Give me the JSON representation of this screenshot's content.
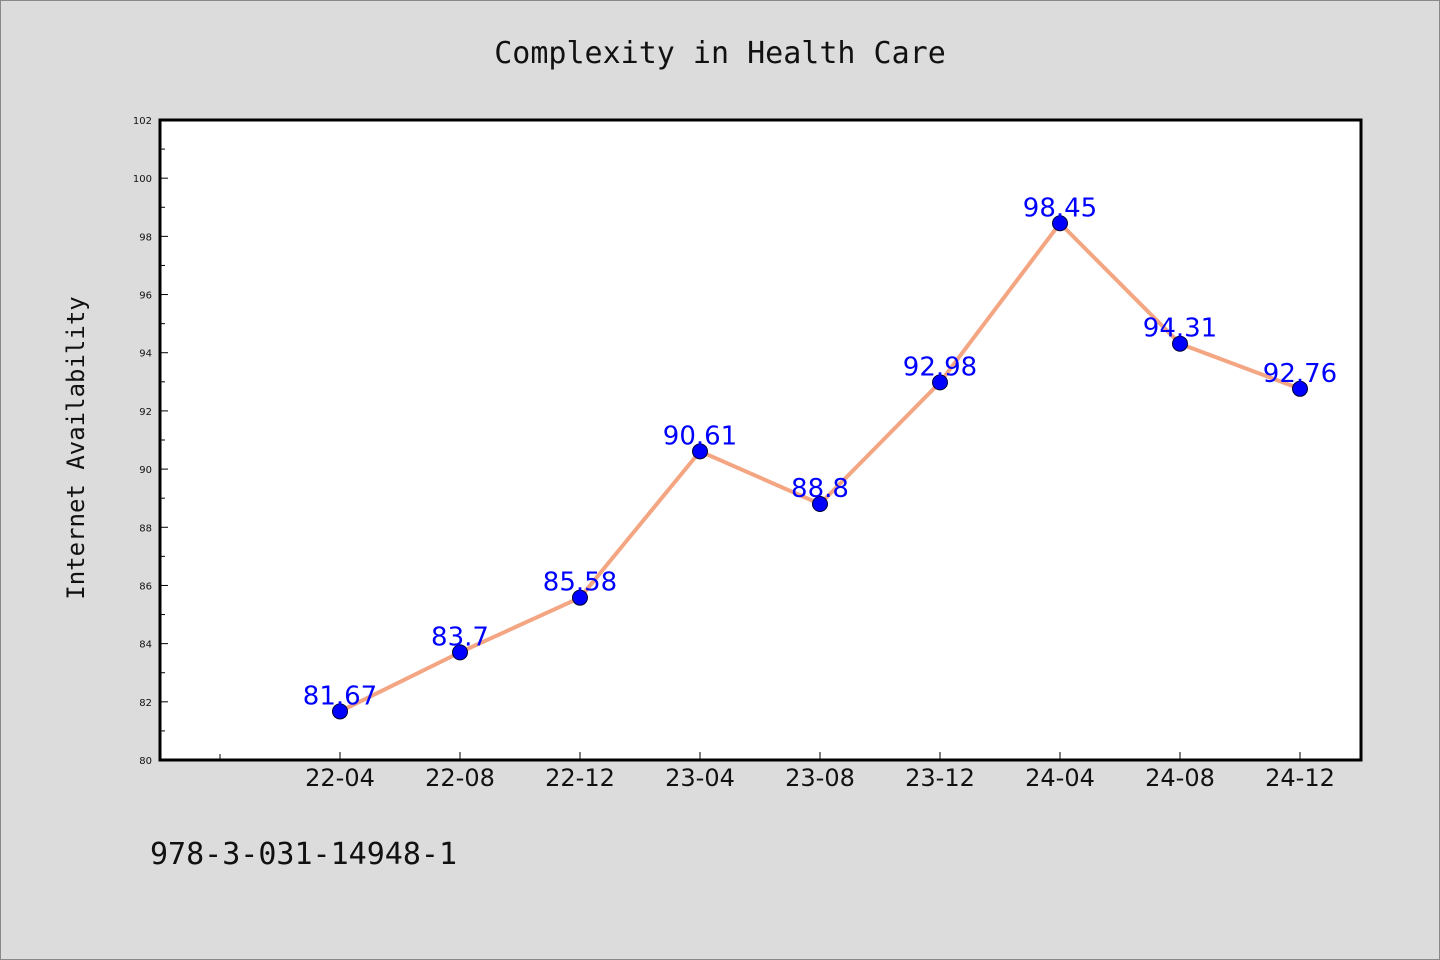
{
  "chart_data": {
    "type": "line",
    "title": "Complexity in Health Care",
    "xlabel": "",
    "ylabel": "Internet Availability",
    "categories": [
      "22-04",
      "22-08",
      "22-12",
      "23-04",
      "23-08",
      "23-12",
      "24-04",
      "24-08",
      "24-12"
    ],
    "series": [
      {
        "values": [
          81.67,
          83.7,
          85.58,
          90.61,
          88.8,
          92.98,
          98.45,
          94.31,
          92.76
        ],
        "data_labels": [
          "81.67",
          "83.7",
          "85.58",
          "90.61",
          "88.8",
          "92.98",
          "98.45",
          "94.31",
          "92.76"
        ]
      }
    ],
    "ylim": [
      80,
      102
    ],
    "yticks": [
      "80",
      "82",
      "84",
      "86",
      "88",
      "90",
      "92",
      "94",
      "96",
      "98",
      "100",
      "102"
    ],
    "grid": false,
    "legend": "none"
  },
  "footer": {
    "isbn": "978-3-031-14948-1"
  },
  "colors": {
    "background": "#dcdcdc",
    "plot_background": "#ffffff",
    "line": "#f4a582",
    "marker": "#0000ff",
    "data_label": "#0000ff",
    "axis": "#000000"
  }
}
